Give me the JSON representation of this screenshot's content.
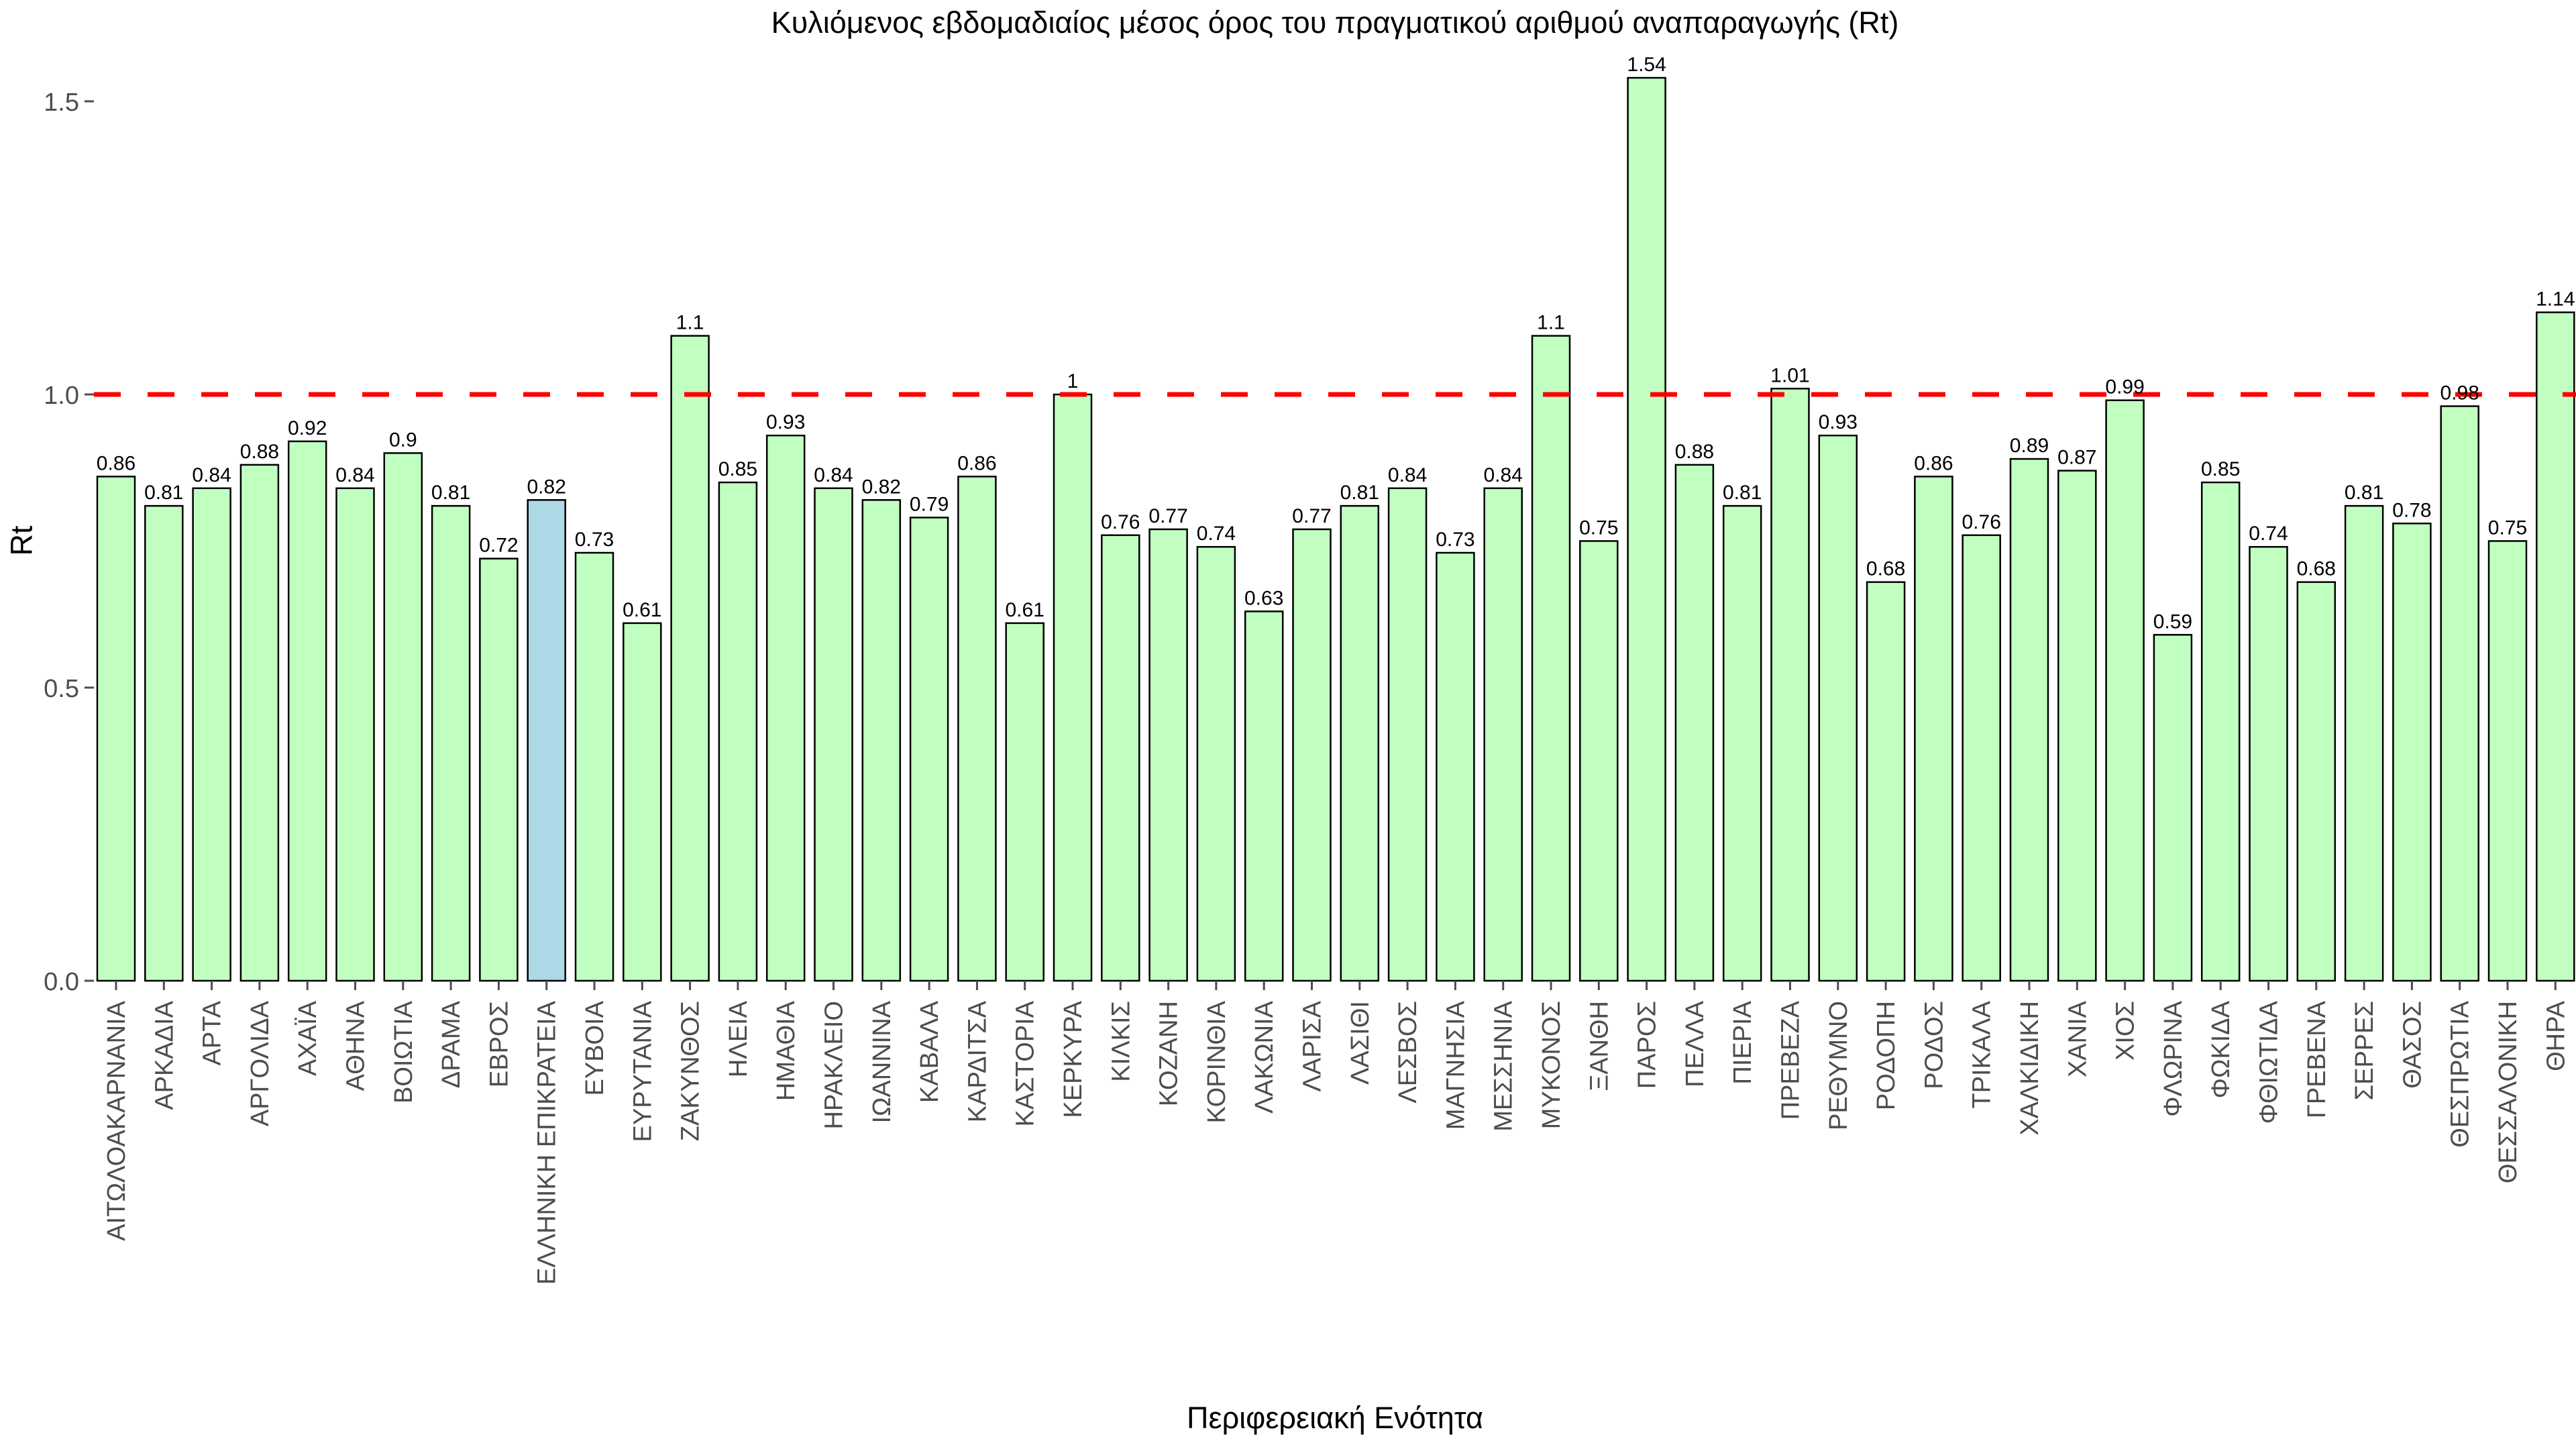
{
  "chart_data": {
    "type": "bar",
    "title": "Κυλιόμενος εβδομαδιαίος μέσος όρος του πραγματικού αριθμού αναπαραγωγής (Rt)",
    "xlabel": "Περιφερειακή Ενότητα",
    "ylabel": "Rt",
    "ylim": [
      0,
      1.5
    ],
    "yticks": [
      0.0,
      0.5,
      1.0,
      1.5
    ],
    "ytick_labels": [
      "0.0",
      "0.5",
      "1.0",
      "1.5"
    ],
    "grid": false,
    "legend": null,
    "reference_line": {
      "value": 1.0,
      "color": "#FF0000",
      "style": "dashed"
    },
    "bar_color": "#C1FFC1",
    "highlight_color": "#ADD8E6",
    "bar_border_color": "#000000",
    "axis_text_color": "#4d4d4d",
    "highlight_category": "ΕΛΛΗΝΙΚΗ ΕΠΙΚΡΑΤΕΙΑ",
    "categories": [
      "ΑΙΤΩΛΟΑΚΑΡΝΑΝΙΑ",
      "ΑΡΚΑΔΙΑ",
      "ΑΡΤΑ",
      "ΑΡΓΟΛΙΔΑ",
      "ΑΧΑΪΑ",
      "ΑΘΗΝΑ",
      "ΒΟΙΩΤΙΑ",
      "ΔΡΑΜΑ",
      "ΕΒΡΟΣ",
      "ΕΛΛΗΝΙΚΗ ΕΠΙΚΡΑΤΕΙΑ",
      "ΕΥΒΟΙΑ",
      "ΕΥΡΥΤΑΝΙΑ",
      "ΖΑΚΥΝΘΟΣ",
      "ΗΛΕΙΑ",
      "ΗΜΑΘΙΑ",
      "ΗΡΑΚΛΕΙΟ",
      "ΙΩΑΝΝΙΝΑ",
      "ΚΑΒΑΛΑ",
      "ΚΑΡΔΙΤΣΑ",
      "ΚΑΣΤΟΡΙΑ",
      "ΚΕΡΚΥΡΑ",
      "ΚΙΛΚΙΣ",
      "ΚΟΖΑΝΗ",
      "ΚΟΡΙΝΘΙΑ",
      "ΛΑΚΩΝΙΑ",
      "ΛΑΡΙΣΑ",
      "ΛΑΣΙΘΙ",
      "ΛΕΣΒΟΣ",
      "ΜΑΓΝΗΣΙΑ",
      "ΜΕΣΣΗΝΙΑ",
      "ΜΥΚΟΝΟΣ",
      "ΞΑΝΘΗ",
      "ΠΑΡΟΣ",
      "ΠΕΛΛΑ",
      "ΠΙΕΡΙΑ",
      "ΠΡΕΒΕΖΑ",
      "ΡΕΘΥΜΝΟ",
      "ΡΟΔΟΠΗ",
      "ΡΟΔΟΣ",
      "ΤΡΙΚΑΛΑ",
      "ΧΑΛΚΙΔΙΚΗ",
      "ΧΑΝΙΑ",
      "ΧΙΟΣ",
      "ΦΛΩΡΙΝΑ",
      "ΦΩΚΙΔΑ",
      "ΦΘΙΩΤΙΔΑ",
      "ΓΡΕΒΕΝΑ",
      "ΣΕΡΡΕΣ",
      "ΘΑΣΟΣ",
      "ΘΕΣΠΡΩΤΙΑ",
      "ΘΕΣΣΑΛΟΝΙΚΗ",
      "ΘΗΡΑ"
    ],
    "values": [
      0.86,
      0.81,
      0.84,
      0.88,
      0.92,
      0.84,
      0.9,
      0.81,
      0.72,
      0.82,
      0.73,
      0.61,
      1.1,
      0.85,
      0.93,
      0.84,
      0.82,
      0.79,
      0.86,
      0.61,
      1,
      0.76,
      0.77,
      0.74,
      0.63,
      0.77,
      0.81,
      0.84,
      0.73,
      0.84,
      1.1,
      0.75,
      1.54,
      0.88,
      0.81,
      1.01,
      0.93,
      0.68,
      0.86,
      0.76,
      0.89,
      0.87,
      0.99,
      0.59,
      0.85,
      0.74,
      0.68,
      0.81,
      0.78,
      0.98,
      0.75,
      1.14
    ],
    "value_labels": [
      "0.86",
      "0.81",
      "0.84",
      "0.88",
      "0.92",
      "0.84",
      "0.9",
      "0.81",
      "0.72",
      "0.82",
      "0.73",
      "0.61",
      "1.1",
      "0.85",
      "0.93",
      "0.84",
      "0.82",
      "0.79",
      "0.86",
      "0.61",
      "1",
      "0.76",
      "0.77",
      "0.74",
      "0.63",
      "0.77",
      "0.81",
      "0.84",
      "0.73",
      "0.84",
      "1.1",
      "0.75",
      "1.54",
      "0.88",
      "0.81",
      "1.01",
      "0.93",
      "0.68",
      "0.86",
      "0.76",
      "0.89",
      "0.87",
      "0.99",
      "0.59",
      "0.85",
      "0.74",
      "0.68",
      "0.81",
      "0.78",
      "0.98",
      "0.75",
      "1.14"
    ]
  }
}
